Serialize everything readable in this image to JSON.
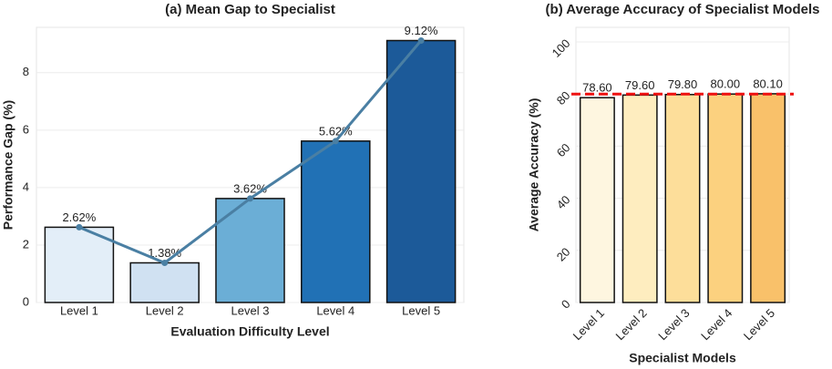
{
  "chart_data": [
    {
      "type": "bar",
      "title": "(a) Mean Gap to Specialist",
      "x_label": "Evaluation Difficulty Level",
      "y_label": "Performance Gap (%)",
      "categories": [
        "Level 1",
        "Level 2",
        "Level 3",
        "Level 4",
        "Level 5"
      ],
      "values": [
        2.62,
        1.38,
        3.62,
        5.62,
        9.12
      ],
      "value_labels": [
        "2.62%",
        "1.38%",
        "3.62%",
        "5.62%",
        "9.12%"
      ],
      "colors": [
        "#e3eef8",
        "#d0e1f2",
        "#6baed6",
        "#2171b5",
        "#1c5a99"
      ],
      "line_overlay": true,
      "line_color": "#4a7fa3",
      "ylim": [
        0,
        9.58
      ],
      "yticks": [
        0,
        2,
        4,
        6,
        8
      ],
      "grid": true
    },
    {
      "type": "bar",
      "title": "(b) Average Accuracy of Specialist Models",
      "x_label": "Specialist Models",
      "y_label": "Average Accuracy (%)",
      "categories": [
        "Level 1",
        "Level 2",
        "Level 3",
        "Level 4",
        "Level 5"
      ],
      "values": [
        78.6,
        79.6,
        79.8,
        80.0,
        80.1
      ],
      "value_labels": [
        "78.60",
        "79.60",
        "79.80",
        "80.00",
        "80.10"
      ],
      "colors": [
        "#fef6e0",
        "#feedbf",
        "#fdde9a",
        "#fcd17f",
        "#f9c16a"
      ],
      "reference_line": 80,
      "reference_color": "#ee1111",
      "ylim": [
        0,
        105.6
      ],
      "yticks": [
        0,
        20,
        40,
        60,
        80,
        100
      ],
      "grid": true
    }
  ]
}
